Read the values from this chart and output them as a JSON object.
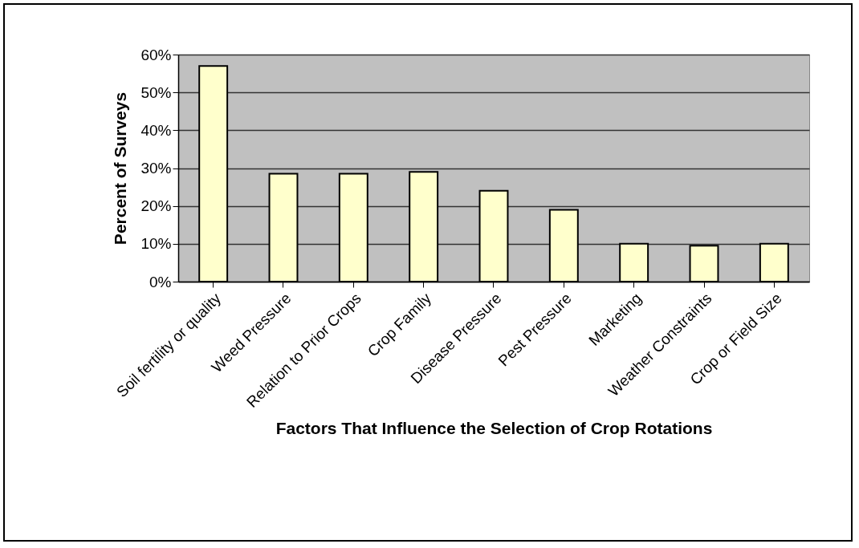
{
  "chart_data": {
    "type": "bar",
    "xlabel": "Factors That Influence the Selection of Crop Rotations",
    "ylabel": "Percent of Surveys",
    "categories": [
      "Soil fertility or quality",
      "Weed Pressure",
      "Relation to Prior Crops",
      "Crop Family",
      "Disease Pressure",
      "Pest Pressure",
      "Marketing",
      "Weather Constraints",
      "Crop or Field Size"
    ],
    "values": [
      57,
      28.5,
      28.5,
      29,
      24,
      19,
      10,
      9.5,
      10
    ],
    "color": "#ffffcc",
    "ylim": [
      0,
      60
    ],
    "yticks": [
      {
        "value": 0,
        "label": "0%"
      },
      {
        "value": 10,
        "label": "10%"
      },
      {
        "value": 20,
        "label": "20%"
      },
      {
        "value": 30,
        "label": "30%"
      },
      {
        "value": 40,
        "label": "40%"
      },
      {
        "value": 50,
        "label": "50%"
      },
      {
        "value": 60,
        "label": "60%"
      }
    ],
    "grid": "y"
  }
}
